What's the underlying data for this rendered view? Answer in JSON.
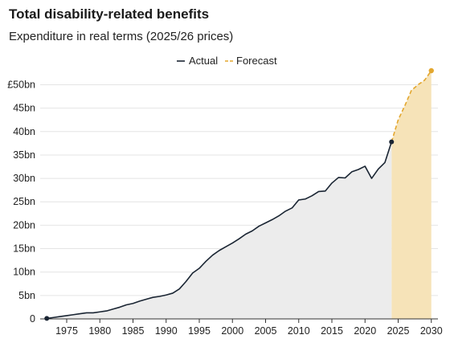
{
  "chart_data": {
    "type": "line",
    "title": "Total disability-related benefits",
    "subtitle": "Expenditure in real terms (2025/26 prices)",
    "xlabel": "",
    "ylabel": "",
    "xlim": [
      1971,
      2031
    ],
    "ylim": [
      0,
      53
    ],
    "x_ticks": [
      1975,
      1980,
      1985,
      1990,
      1995,
      2000,
      2005,
      2010,
      2015,
      2020,
      2025,
      2030
    ],
    "x_tick_labels": [
      "1975",
      "1980",
      "1985",
      "1990",
      "1995",
      "2000",
      "2005",
      "2010",
      "2015",
      "2020",
      "2025",
      "2030"
    ],
    "y_ticks": [
      0,
      5,
      10,
      15,
      20,
      25,
      30,
      35,
      40,
      45,
      50
    ],
    "y_tick_labels": [
      "0",
      "5bn",
      "10bn",
      "15bn",
      "20bn",
      "25bn",
      "30bn",
      "35bn",
      "40bn",
      "45bn",
      "£50bn"
    ],
    "grid": true,
    "legend_position": "top-center",
    "colors": {
      "actual": "#1a2533",
      "forecast": "#e3a72f",
      "actual_fill": "#ececec",
      "forecast_fill": "#f6e3b8",
      "grid": "#e4e4e4"
    },
    "series": [
      {
        "name": "Actual",
        "style": "solid",
        "x": [
          1972,
          1973,
          1974,
          1975,
          1976,
          1977,
          1978,
          1979,
          1980,
          1981,
          1982,
          1983,
          1984,
          1985,
          1986,
          1987,
          1988,
          1989,
          1990,
          1991,
          1992,
          1993,
          1994,
          1995,
          1996,
          1997,
          1998,
          1999,
          2000,
          2001,
          2002,
          2003,
          2004,
          2005,
          2006,
          2007,
          2008,
          2009,
          2010,
          2011,
          2012,
          2013,
          2014,
          2015,
          2016,
          2017,
          2018,
          2019,
          2020,
          2021,
          2022,
          2023,
          2024
        ],
        "values": [
          0.1,
          0.3,
          0.5,
          0.7,
          0.9,
          1.1,
          1.3,
          1.3,
          1.5,
          1.7,
          2.1,
          2.5,
          3.0,
          3.3,
          3.8,
          4.2,
          4.6,
          4.8,
          5.1,
          5.5,
          6.4,
          8.0,
          9.8,
          10.8,
          12.3,
          13.6,
          14.6,
          15.4,
          16.2,
          17.1,
          18.1,
          18.8,
          19.8,
          20.5,
          21.2,
          22.0,
          23.0,
          23.7,
          25.4,
          25.6,
          26.3,
          27.2,
          27.3,
          29.0,
          30.2,
          30.1,
          31.4,
          31.9,
          32.6,
          30.0,
          32.0,
          33.4,
          37.8
        ]
      },
      {
        "name": "Forecast",
        "style": "dashed",
        "x": [
          2024,
          2025,
          2026,
          2027,
          2028,
          2029,
          2030
        ],
        "values": [
          37.8,
          42.5,
          45.5,
          48.8,
          50.0,
          51.0,
          53.0
        ]
      }
    ]
  }
}
